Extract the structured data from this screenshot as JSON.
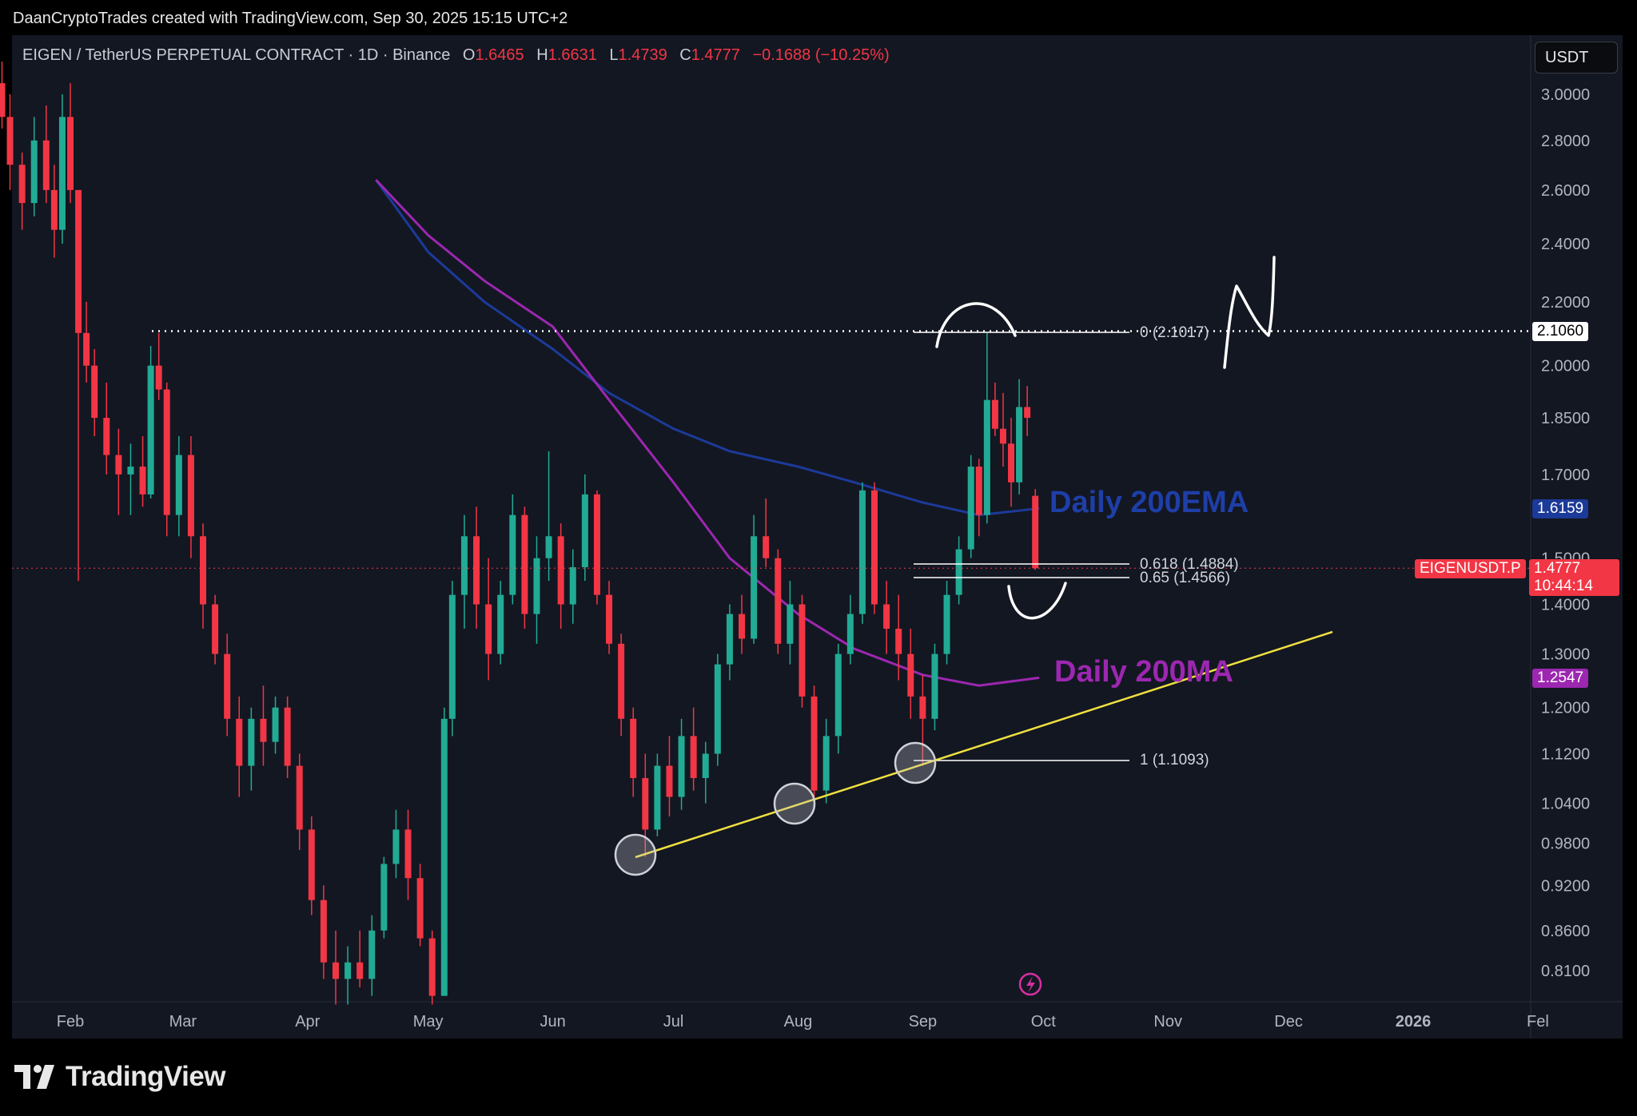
{
  "credit": "DaanCryptoTrades created with TradingView.com, Sep 30, 2025 15:15 UTC+2",
  "brand": "TradingView",
  "currency_button": "USDT",
  "legend": {
    "symbol": "EIGEN / TetherUS PERPETUAL CONTRACT · 1D · Binance",
    "o_label": "O",
    "o": "1.6465",
    "h_label": "H",
    "h": "1.6631",
    "l_label": "L",
    "l": "1.4739",
    "c_label": "C",
    "c": "1.4777",
    "change": "−0.1688 (−10.25%)"
  },
  "annotations": {
    "ema_label": "Daily 200EMA",
    "ma_label": "Daily 200MA"
  },
  "fib_labels": {
    "zero": "0 (2.1017)",
    "l618": "0.618 (1.4884)",
    "l65": "0.65 (1.4566)",
    "one": "1 (1.1093)"
  },
  "price_labels": {
    "high_level": "2.1060",
    "ema_value": "1.6159",
    "symbol_tag": "EIGENUSDT.P",
    "last_price": "1.4777",
    "countdown": "10:44:14",
    "ma_value": "1.2547"
  },
  "colors": {
    "background": "#131722",
    "up": "#22ab94",
    "down": "#f23645",
    "ema": "#1c3a99",
    "ma": "#9c27b0",
    "trendline": "#f0e040"
  },
  "chart_data": {
    "type": "candlestick",
    "y_scale": "log",
    "ylim": [
      0.77,
      3.15
    ],
    "y_ticks": [
      "3.0000",
      "2.8000",
      "2.6000",
      "2.4000",
      "2.2000",
      "2.0000",
      "1.8500",
      "1.7000",
      "1.5000",
      "1.4000",
      "1.3000",
      "1.2000",
      "1.1200",
      "1.0400",
      "0.9800",
      "0.9200",
      "0.8600",
      "0.8100"
    ],
    "x_ticks": [
      "Feb",
      "Mar",
      "Apr",
      "May",
      "Jun",
      "Jul",
      "Aug",
      "Sep",
      "Oct",
      "Nov",
      "Dec",
      "2026",
      "Fel"
    ],
    "x_start": "2025-01-15",
    "series": [
      {
        "name": "Daily 200EMA",
        "points": [
          [
            "2025-04-18",
            2.64
          ],
          [
            "2025-05-01",
            2.37
          ],
          [
            "2025-05-15",
            2.2
          ],
          [
            "2025-06-01",
            2.05
          ],
          [
            "2025-06-15",
            1.92
          ],
          [
            "2025-07-01",
            1.82
          ],
          [
            "2025-07-15",
            1.76
          ],
          [
            "2025-08-01",
            1.72
          ],
          [
            "2025-08-15",
            1.68
          ],
          [
            "2025-09-01",
            1.63
          ],
          [
            "2025-09-15",
            1.6
          ],
          [
            "2025-09-30",
            1.6159
          ]
        ]
      },
      {
        "name": "Daily 200MA",
        "points": [
          [
            "2025-04-18",
            2.64
          ],
          [
            "2025-05-01",
            2.43
          ],
          [
            "2025-05-15",
            2.27
          ],
          [
            "2025-06-01",
            2.12
          ],
          [
            "2025-06-15",
            1.9
          ],
          [
            "2025-07-01",
            1.68
          ],
          [
            "2025-07-15",
            1.5
          ],
          [
            "2025-08-01",
            1.38
          ],
          [
            "2025-08-15",
            1.31
          ],
          [
            "2025-09-01",
            1.26
          ],
          [
            "2025-09-15",
            1.24
          ],
          [
            "2025-09-30",
            1.2547
          ]
        ]
      }
    ],
    "candles": [
      [
        "2025-01-15",
        3.05,
        3.15,
        2.85,
        2.9
      ],
      [
        "2025-01-17",
        2.9,
        3.0,
        2.6,
        2.7
      ],
      [
        "2025-01-20",
        2.7,
        2.75,
        2.45,
        2.55
      ],
      [
        "2025-01-23",
        2.55,
        2.9,
        2.5,
        2.8
      ],
      [
        "2025-01-26",
        2.8,
        2.95,
        2.55,
        2.6
      ],
      [
        "2025-01-28",
        2.6,
        2.7,
        2.35,
        2.45
      ],
      [
        "2025-01-30",
        2.45,
        3.0,
        2.4,
        2.9
      ],
      [
        "2025-02-01",
        2.9,
        3.05,
        2.55,
        2.6
      ],
      [
        "2025-02-03",
        2.6,
        2.6,
        1.45,
        2.1
      ],
      [
        "2025-02-05",
        2.1,
        2.2,
        1.95,
        2.0
      ],
      [
        "2025-02-07",
        2.0,
        2.05,
        1.8,
        1.85
      ],
      [
        "2025-02-10",
        1.85,
        1.95,
        1.7,
        1.75
      ],
      [
        "2025-02-13",
        1.75,
        1.82,
        1.6,
        1.7
      ],
      [
        "2025-02-16",
        1.7,
        1.78,
        1.6,
        1.72
      ],
      [
        "2025-02-19",
        1.72,
        1.8,
        1.62,
        1.65
      ],
      [
        "2025-02-21",
        1.65,
        2.06,
        1.64,
        2.0
      ],
      [
        "2025-02-23",
        2.0,
        2.1,
        1.9,
        1.93
      ],
      [
        "2025-02-25",
        1.93,
        1.95,
        1.55,
        1.6
      ],
      [
        "2025-02-28",
        1.6,
        1.8,
        1.55,
        1.75
      ],
      [
        "2025-03-03",
        1.75,
        1.8,
        1.5,
        1.55
      ],
      [
        "2025-03-06",
        1.55,
        1.58,
        1.35,
        1.4
      ],
      [
        "2025-03-09",
        1.4,
        1.42,
        1.28,
        1.3
      ],
      [
        "2025-03-12",
        1.3,
        1.34,
        1.15,
        1.18
      ],
      [
        "2025-03-15",
        1.18,
        1.22,
        1.05,
        1.1
      ],
      [
        "2025-03-18",
        1.1,
        1.2,
        1.06,
        1.18
      ],
      [
        "2025-03-21",
        1.18,
        1.24,
        1.1,
        1.14
      ],
      [
        "2025-03-24",
        1.14,
        1.22,
        1.12,
        1.2
      ],
      [
        "2025-03-27",
        1.2,
        1.22,
        1.08,
        1.1
      ],
      [
        "2025-03-30",
        1.1,
        1.12,
        0.97,
        1.0
      ],
      [
        "2025-04-02",
        1.0,
        1.02,
        0.88,
        0.9
      ],
      [
        "2025-04-05",
        0.9,
        0.92,
        0.8,
        0.82
      ],
      [
        "2025-04-08",
        0.82,
        0.86,
        0.77,
        0.8
      ],
      [
        "2025-04-11",
        0.8,
        0.84,
        0.77,
        0.82
      ],
      [
        "2025-04-14",
        0.82,
        0.86,
        0.79,
        0.8
      ],
      [
        "2025-04-17",
        0.8,
        0.88,
        0.78,
        0.86
      ],
      [
        "2025-04-20",
        0.86,
        0.96,
        0.85,
        0.95
      ],
      [
        "2025-04-23",
        0.95,
        1.03,
        0.93,
        1.0
      ],
      [
        "2025-04-26",
        1.0,
        1.03,
        0.9,
        0.93
      ],
      [
        "2025-04-29",
        0.93,
        0.95,
        0.84,
        0.85
      ],
      [
        "2025-05-02",
        0.85,
        0.86,
        0.77,
        0.78
      ],
      [
        "2025-05-05",
        0.78,
        1.2,
        0.78,
        1.18
      ],
      [
        "2025-05-07",
        1.18,
        1.45,
        1.15,
        1.42
      ],
      [
        "2025-05-10",
        1.42,
        1.6,
        1.35,
        1.55
      ],
      [
        "2025-05-13",
        1.55,
        1.62,
        1.35,
        1.4
      ],
      [
        "2025-05-16",
        1.4,
        1.5,
        1.25,
        1.3
      ],
      [
        "2025-05-19",
        1.3,
        1.45,
        1.28,
        1.42
      ],
      [
        "2025-05-22",
        1.42,
        1.65,
        1.4,
        1.6
      ],
      [
        "2025-05-25",
        1.6,
        1.62,
        1.35,
        1.38
      ],
      [
        "2025-05-28",
        1.38,
        1.55,
        1.32,
        1.5
      ],
      [
        "2025-05-31",
        1.5,
        1.76,
        1.45,
        1.55
      ],
      [
        "2025-06-03",
        1.55,
        1.58,
        1.35,
        1.4
      ],
      [
        "2025-06-06",
        1.4,
        1.52,
        1.36,
        1.48
      ],
      [
        "2025-06-09",
        1.48,
        1.7,
        1.45,
        1.65
      ],
      [
        "2025-06-12",
        1.65,
        1.66,
        1.4,
        1.42
      ],
      [
        "2025-06-15",
        1.42,
        1.45,
        1.3,
        1.32
      ],
      [
        "2025-06-18",
        1.32,
        1.34,
        1.15,
        1.18
      ],
      [
        "2025-06-21",
        1.18,
        1.2,
        1.05,
        1.08
      ],
      [
        "2025-06-24",
        1.08,
        1.12,
        0.96,
        1.0
      ],
      [
        "2025-06-27",
        1.0,
        1.12,
        0.99,
        1.1
      ],
      [
        "2025-06-30",
        1.1,
        1.15,
        1.02,
        1.05
      ],
      [
        "2025-07-03",
        1.05,
        1.18,
        1.03,
        1.15
      ],
      [
        "2025-07-06",
        1.15,
        1.2,
        1.06,
        1.08
      ],
      [
        "2025-07-09",
        1.08,
        1.14,
        1.04,
        1.12
      ],
      [
        "2025-07-12",
        1.12,
        1.3,
        1.1,
        1.28
      ],
      [
        "2025-07-15",
        1.28,
        1.4,
        1.25,
        1.38
      ],
      [
        "2025-07-18",
        1.38,
        1.42,
        1.3,
        1.33
      ],
      [
        "2025-07-21",
        1.33,
        1.6,
        1.32,
        1.55
      ],
      [
        "2025-07-24",
        1.55,
        1.64,
        1.48,
        1.5
      ],
      [
        "2025-07-27",
        1.5,
        1.52,
        1.3,
        1.32
      ],
      [
        "2025-07-30",
        1.32,
        1.45,
        1.28,
        1.4
      ],
      [
        "2025-08-02",
        1.4,
        1.42,
        1.2,
        1.22
      ],
      [
        "2025-08-05",
        1.22,
        1.24,
        1.03,
        1.06
      ],
      [
        "2025-08-08",
        1.06,
        1.18,
        1.04,
        1.15
      ],
      [
        "2025-08-11",
        1.15,
        1.32,
        1.12,
        1.3
      ],
      [
        "2025-08-14",
        1.3,
        1.42,
        1.28,
        1.38
      ],
      [
        "2025-08-17",
        1.38,
        1.68,
        1.36,
        1.66
      ],
      [
        "2025-08-20",
        1.66,
        1.68,
        1.38,
        1.4
      ],
      [
        "2025-08-23",
        1.4,
        1.45,
        1.3,
        1.35
      ],
      [
        "2025-08-26",
        1.35,
        1.42,
        1.25,
        1.3
      ],
      [
        "2025-08-29",
        1.3,
        1.35,
        1.18,
        1.22
      ],
      [
        "2025-09-01",
        1.22,
        1.26,
        1.1,
        1.18
      ],
      [
        "2025-09-04",
        1.18,
        1.32,
        1.16,
        1.3
      ],
      [
        "2025-09-07",
        1.3,
        1.45,
        1.28,
        1.42
      ],
      [
        "2025-09-10",
        1.42,
        1.55,
        1.4,
        1.52
      ],
      [
        "2025-09-13",
        1.52,
        1.75,
        1.5,
        1.72
      ],
      [
        "2025-09-15",
        1.72,
        1.74,
        1.55,
        1.6
      ],
      [
        "2025-09-17",
        1.6,
        2.1,
        1.58,
        1.9
      ],
      [
        "2025-09-19",
        1.9,
        1.95,
        1.8,
        1.82
      ],
      [
        "2025-09-21",
        1.82,
        1.92,
        1.72,
        1.78
      ],
      [
        "2025-09-23",
        1.78,
        1.85,
        1.62,
        1.68
      ],
      [
        "2025-09-25",
        1.68,
        1.96,
        1.65,
        1.88
      ],
      [
        "2025-09-27",
        1.88,
        1.94,
        1.8,
        1.85
      ],
      [
        "2025-09-29",
        1.6465,
        1.6631,
        1.4739,
        1.4777
      ]
    ]
  }
}
